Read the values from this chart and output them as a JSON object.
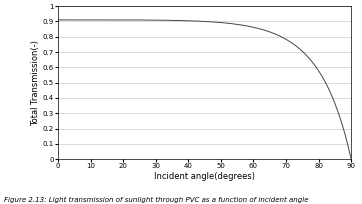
{
  "xlabel": "Incident angle(degrees)",
  "ylabel": "Total Transmission(-)",
  "xlim": [
    0,
    90
  ],
  "ylim": [
    0,
    1
  ],
  "xticks": [
    0,
    10,
    20,
    30,
    40,
    50,
    60,
    70,
    80,
    90
  ],
  "yticks": [
    0,
    0.1,
    0.2,
    0.3,
    0.4,
    0.5,
    0.6,
    0.7,
    0.8,
    0.9,
    1
  ],
  "ytick_labels": [
    "0",
    "0.1",
    "0.2",
    "0.3",
    "0.4",
    "0.5",
    "0.6",
    "0.7",
    "0.8",
    "0.9",
    "1"
  ],
  "line_color": "#444444",
  "caption": "Figure 2.13: Light transmission of sunlight through PVC as a function of incident angle",
  "background_color": "#ffffff",
  "grid_color": "#cccccc",
  "axis_label_fontsize": 6,
  "tick_fontsize": 5,
  "caption_fontsize": 5
}
